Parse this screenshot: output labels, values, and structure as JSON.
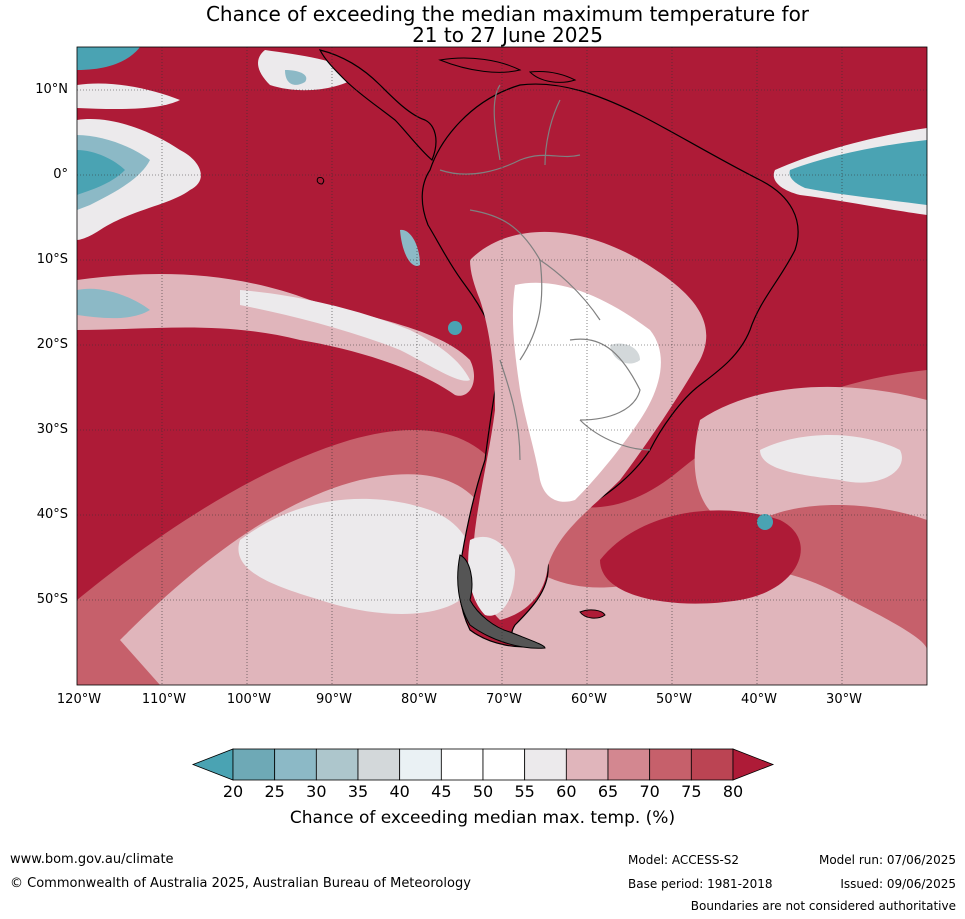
{
  "title_line1": "Chance of exceeding the median maximum temperature for",
  "title_line2": "21 to 27 June 2025",
  "lat_labels": [
    "10°N",
    "0°",
    "10°S",
    "20°S",
    "30°S",
    "40°S",
    "50°S"
  ],
  "lon_labels": [
    "120°W",
    "110°W",
    "100°W",
    "90°W",
    "80°W",
    "70°W",
    "60°W",
    "50°W",
    "40°W",
    "30°W"
  ],
  "colorbar": {
    "ticks": [
      "20",
      "25",
      "30",
      "35",
      "40",
      "45",
      "50",
      "55",
      "60",
      "65",
      "70",
      "75",
      "80"
    ],
    "colors": [
      "#4aa3b3",
      "#6ea9b6",
      "#8cb9c6",
      "#adc6cc",
      "#d3d8da",
      "#eaf1f4",
      "#ffffff",
      "#ffffff",
      "#eceaec",
      "#e0b5bb",
      "#d38790",
      "#c6606b",
      "#bb4453",
      "#ae1b37"
    ],
    "label": "Chance of exceeding median max. temp. (%)"
  },
  "colors": {
    "ocean_warm": "#ae1b37",
    "warm_mid": "#c6606b",
    "warm_light": "#e0b5bb",
    "neutral": "#ffffff",
    "cool": "#4aa3b3",
    "cool_light": "#8cb9c6"
  },
  "footer": {
    "url": "www.bom.gov.au/climate",
    "copyright": "© Commonwealth of Australia 2025, Australian Bureau of Meteorology",
    "model": "Model: ACCESS-S2",
    "base_period": "Base period: 1981-2018",
    "model_run": "Model run: 07/06/2025",
    "issued": "Issued: 09/06/2025",
    "disclaimer": "Boundaries are not considered authoritative"
  }
}
